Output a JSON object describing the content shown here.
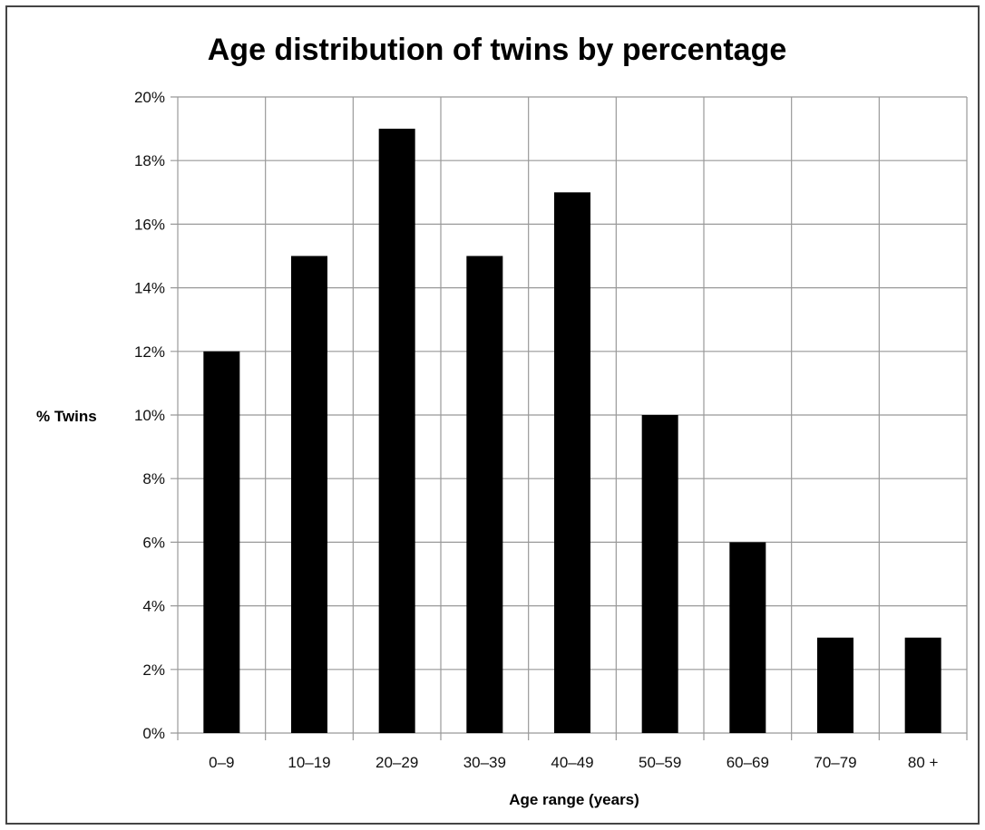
{
  "chart_data": {
    "type": "bar",
    "title": "Age distribution of twins by percentage",
    "xlabel": "Age range (years)",
    "ylabel": "% Twins",
    "categories": [
      "0–9",
      "10–19",
      "20–29",
      "30–39",
      "40–49",
      "50–59",
      "60–69",
      "70–79",
      "80 +"
    ],
    "values": [
      12,
      15,
      19,
      15,
      17,
      10,
      6,
      3,
      3
    ],
    "value_unit": "%",
    "ylim": [
      0,
      20
    ],
    "ytick_step": 2,
    "yticks": [
      "0%",
      "2%",
      "4%",
      "6%",
      "8%",
      "10%",
      "12%",
      "14%",
      "16%",
      "18%",
      "20%"
    ],
    "grid": "both",
    "legend": "none",
    "bar_color": "#000000",
    "grid_color": "#999999"
  }
}
